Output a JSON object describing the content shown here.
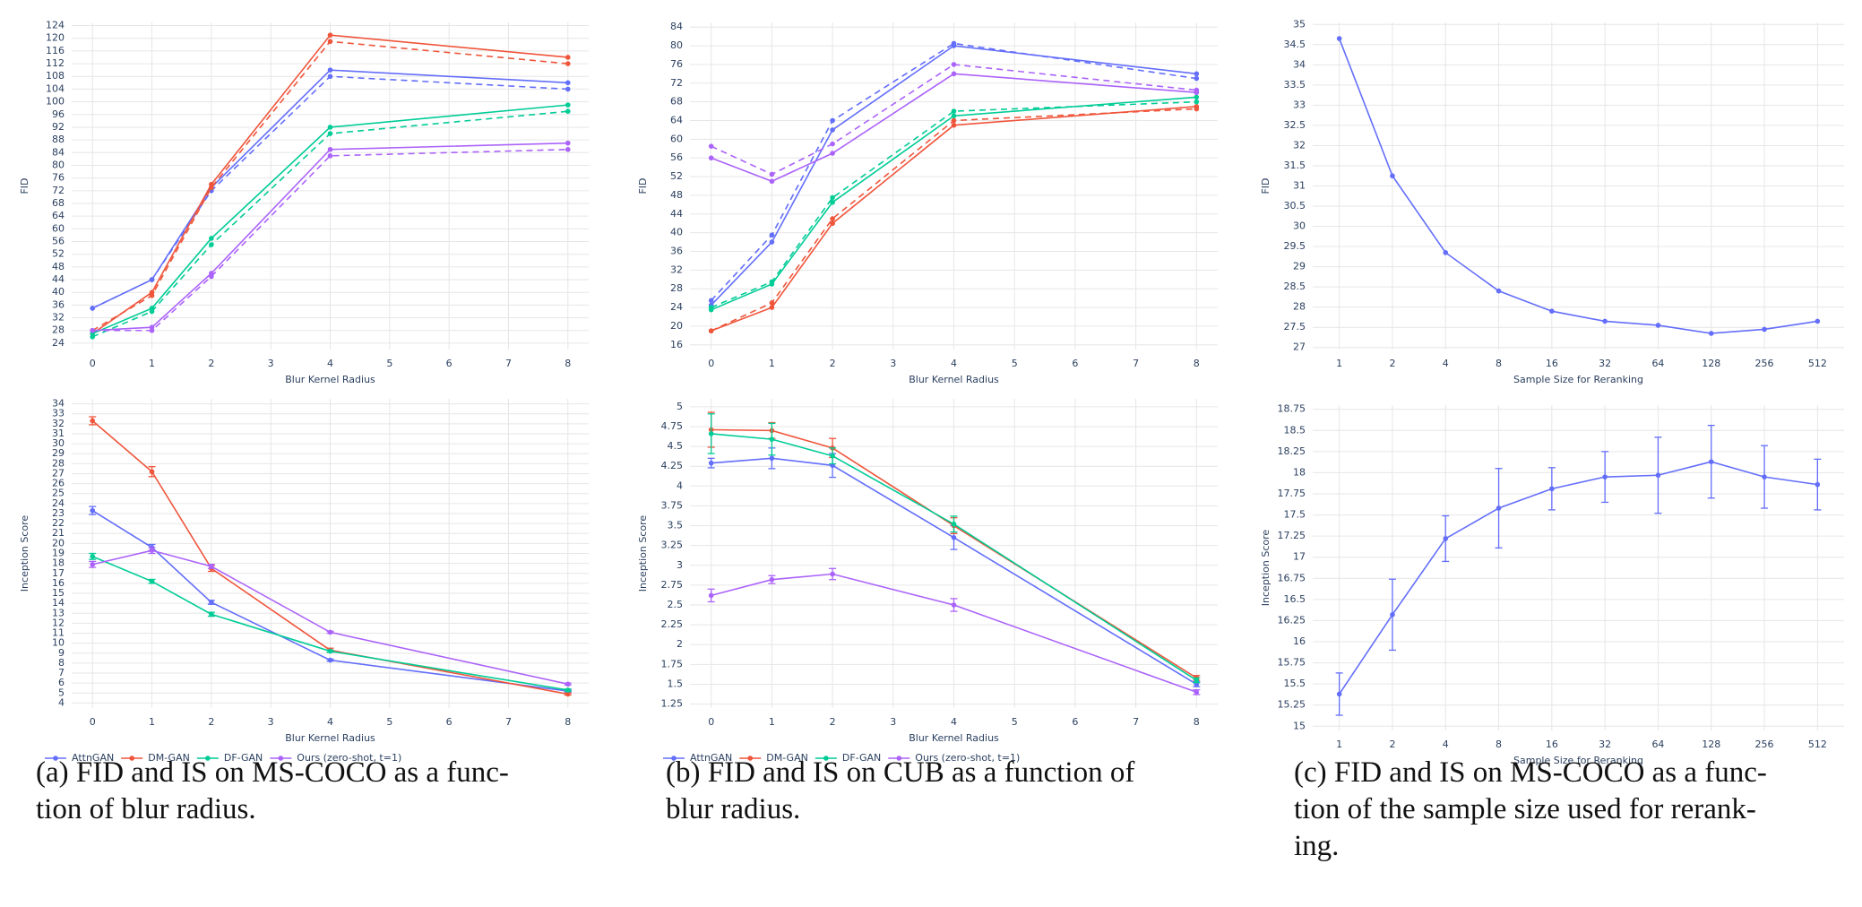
{
  "chart_data": [
    {
      "type": "line",
      "x_label": "Blur Kernel Radius",
      "y_label": "FID",
      "x": [
        0,
        1,
        2,
        4,
        8
      ],
      "xlim": [
        -0.35,
        8.35
      ],
      "xticks": [
        0,
        1,
        2,
        3,
        4,
        5,
        6,
        7,
        8
      ],
      "ylim": [
        22,
        125
      ],
      "yticks": [
        24,
        28,
        32,
        36,
        40,
        44,
        48,
        52,
        56,
        60,
        64,
        68,
        72,
        76,
        80,
        84,
        88,
        92,
        96,
        100,
        104,
        108,
        112,
        116,
        120,
        124
      ],
      "grid": true,
      "series": [
        {
          "color": "#636efa",
          "values": [
            35,
            44,
            73,
            110,
            106
          ],
          "values_dashed": [
            35,
            44,
            72,
            108,
            104
          ]
        },
        {
          "color": "#ef553b",
          "values": [
            27,
            40,
            74,
            121,
            114
          ],
          "values_dashed": [
            28,
            39,
            73,
            119,
            112
          ]
        },
        {
          "color": "#00cc96",
          "values": [
            27,
            35,
            57,
            92,
            99
          ],
          "values_dashed": [
            26,
            34,
            55,
            90,
            97
          ]
        },
        {
          "color": "#ab63fa",
          "values": [
            28,
            29,
            46,
            85,
            87
          ],
          "values_dashed": [
            28,
            28,
            45,
            83,
            85
          ]
        }
      ]
    },
    {
      "type": "line",
      "x_label": "Blur Kernel Radius",
      "y_label": "Inception Score",
      "x": [
        0,
        1,
        2,
        4,
        8
      ],
      "xlim": [
        -0.35,
        8.35
      ],
      "xticks": [
        0,
        1,
        2,
        3,
        4,
        5,
        6,
        7,
        8
      ],
      "ylim": [
        3.5,
        34.5
      ],
      "yticks": [
        4,
        5,
        6,
        7,
        8,
        9,
        10,
        11,
        12,
        13,
        14,
        15,
        16,
        17,
        18,
        19,
        20,
        21,
        22,
        23,
        24,
        25,
        26,
        27,
        28,
        29,
        30,
        31,
        32,
        33,
        34
      ],
      "grid": true,
      "legend": "below",
      "series": [
        {
          "name": "AttnGAN",
          "color": "#636efa",
          "values": [
            23.3,
            19.6,
            14.1,
            8.3,
            5.2
          ],
          "errors": [
            0.4,
            0.3,
            0.2,
            0.1,
            0.1
          ]
        },
        {
          "name": "DM-GAN",
          "color": "#ef553b",
          "values": [
            32.3,
            27.2,
            17.5,
            9.3,
            4.9
          ],
          "errors": [
            0.4,
            0.5,
            0.3,
            0.2,
            0.1
          ]
        },
        {
          "name": "DF-GAN",
          "color": "#00cc96",
          "values": [
            18.7,
            16.2,
            12.9,
            9.2,
            5.3
          ],
          "errors": [
            0.3,
            0.2,
            0.2,
            0.1,
            0.1
          ]
        },
        {
          "name": "Ours (zero-shot, t=1)",
          "color": "#ab63fa",
          "values": [
            17.9,
            19.3,
            17.7,
            11.1,
            5.9
          ],
          "errors": [
            0.3,
            0.3,
            0.2,
            0.1,
            0.1
          ]
        }
      ]
    },
    {
      "type": "line",
      "x_label": "Blur Kernel Radius",
      "y_label": "FID",
      "x": [
        0,
        1,
        2,
        4,
        8
      ],
      "xlim": [
        -0.35,
        8.35
      ],
      "xticks": [
        0,
        1,
        2,
        3,
        4,
        5,
        6,
        7,
        8
      ],
      "ylim": [
        15,
        85
      ],
      "yticks": [
        16,
        20,
        24,
        28,
        32,
        36,
        40,
        44,
        48,
        52,
        56,
        60,
        64,
        68,
        72,
        76,
        80,
        84
      ],
      "grid": true,
      "series": [
        {
          "color": "#636efa",
          "values": [
            24.5,
            38,
            62,
            80,
            74
          ],
          "values_dashed": [
            25.5,
            39.5,
            64,
            80.5,
            73
          ]
        },
        {
          "color": "#ef553b",
          "values": [
            19,
            24,
            42,
            63,
            67
          ],
          "values_dashed": [
            19,
            25,
            43,
            64,
            66.5
          ]
        },
        {
          "color": "#00cc96",
          "values": [
            23.5,
            29,
            46.5,
            65,
            69
          ],
          "values_dashed": [
            24,
            29.5,
            47.5,
            66,
            68
          ]
        },
        {
          "color": "#ab63fa",
          "values": [
            56,
            51,
            57,
            74,
            70
          ],
          "values_dashed": [
            58.5,
            52.5,
            59,
            76,
            70.5
          ]
        }
      ]
    },
    {
      "type": "line",
      "x_label": "Blur Kernel Radius",
      "y_label": "Inception Score",
      "x": [
        0,
        1,
        2,
        4,
        8
      ],
      "xlim": [
        -0.35,
        8.35
      ],
      "xticks": [
        0,
        1,
        2,
        3,
        4,
        5,
        6,
        7,
        8
      ],
      "ylim": [
        1.2,
        5.1
      ],
      "yticks": [
        1.25,
        1.5,
        1.75,
        2,
        2.25,
        2.5,
        2.75,
        3,
        3.25,
        3.5,
        3.75,
        4,
        4.25,
        4.5,
        4.75,
        5
      ],
      "grid": true,
      "legend": "below",
      "series": [
        {
          "name": "AttnGAN",
          "color": "#636efa",
          "values": [
            4.29,
            4.35,
            4.26,
            3.35,
            1.5
          ],
          "errors": [
            0.06,
            0.13,
            0.15,
            0.15,
            0.03
          ]
        },
        {
          "name": "DM-GAN",
          "color": "#ef553b",
          "values": [
            4.71,
            4.7,
            4.48,
            3.5,
            1.58
          ],
          "errors": [
            0.22,
            0.1,
            0.12,
            0.1,
            0.03
          ]
        },
        {
          "name": "DF-GAN",
          "color": "#00cc96",
          "values": [
            4.66,
            4.59,
            4.38,
            3.52,
            1.55
          ],
          "errors": [
            0.25,
            0.2,
            0.1,
            0.1,
            0.03
          ]
        },
        {
          "name": "Ours (zero-shot, t=1)",
          "color": "#ab63fa",
          "values": [
            2.62,
            2.82,
            2.89,
            2.5,
            1.4
          ],
          "errors": [
            0.08,
            0.05,
            0.07,
            0.08,
            0.03
          ]
        }
      ]
    },
    {
      "type": "line",
      "x_label": "Sample Size for Reranking",
      "y_label": "FID",
      "categories": [
        "1",
        "2",
        "4",
        "8",
        "16",
        "32",
        "64",
        "128",
        "256",
        "512"
      ],
      "ylim": [
        26.95,
        35.05
      ],
      "yticks": [
        27,
        27.5,
        28,
        28.5,
        29,
        29.5,
        30,
        30.5,
        31,
        31.5,
        32,
        32.5,
        33,
        33.5,
        34,
        34.5,
        35
      ],
      "grid": true,
      "series": [
        {
          "color": "#636efa",
          "values": [
            34.65,
            31.25,
            29.35,
            28.4,
            27.9,
            27.65,
            27.55,
            27.35,
            27.45,
            27.65
          ]
        }
      ]
    },
    {
      "type": "line",
      "x_label": "Sample Size for Reranking",
      "y_label": "Inception Score",
      "categories": [
        "1",
        "2",
        "4",
        "8",
        "16",
        "32",
        "64",
        "128",
        "256",
        "512"
      ],
      "ylim": [
        14.95,
        18.8
      ],
      "yticks": [
        15,
        15.25,
        15.5,
        15.75,
        16,
        16.25,
        16.5,
        16.75,
        17,
        17.25,
        17.5,
        17.75,
        18,
        18.25,
        18.5,
        18.75
      ],
      "grid": true,
      "series": [
        {
          "color": "#636efa",
          "values": [
            15.38,
            16.32,
            17.22,
            17.58,
            17.81,
            17.95,
            17.97,
            18.13,
            17.95,
            17.86
          ],
          "errors": [
            0.25,
            0.42,
            0.27,
            0.47,
            0.25,
            0.3,
            0.45,
            0.43,
            0.37,
            0.3
          ]
        }
      ]
    }
  ],
  "captions": [
    [
      "(a) FID and IS on MS-COCO as a func-",
      "tion of blur radius."
    ],
    [
      "(b) FID and IS on CUB as a function of",
      "blur radius."
    ],
    [
      "(c) FID and IS on MS-COCO as a func-",
      "tion of the sample size used for rerank-",
      "ing."
    ]
  ]
}
